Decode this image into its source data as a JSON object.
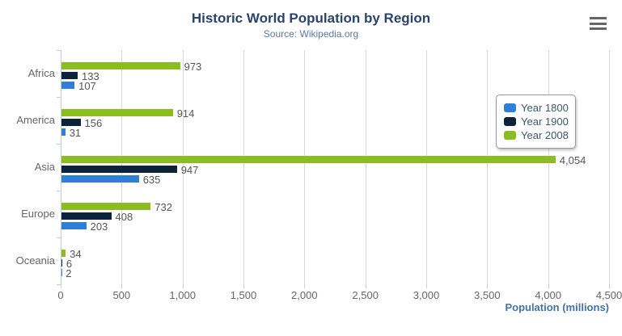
{
  "header": {
    "title": "Historic World Population by Region",
    "subtitle": "Source: Wikipedia.org"
  },
  "menu": {
    "icon": "hamburger-menu-icon"
  },
  "chart_data": {
    "type": "bar",
    "orientation": "horizontal",
    "title": "Historic World Population by Region",
    "subtitle": "Source: Wikipedia.org",
    "categories": [
      "Africa",
      "America",
      "Asia",
      "Europe",
      "Oceania"
    ],
    "series": [
      {
        "name": "Year 1800",
        "color": "#2f7ed8",
        "values": [
          107,
          31,
          635,
          203,
          2
        ]
      },
      {
        "name": "Year 1900",
        "color": "#0d233a",
        "values": [
          133,
          156,
          947,
          408,
          6
        ]
      },
      {
        "name": "Year 2008",
        "color": "#8bbc21",
        "values": [
          973,
          914,
          4054,
          732,
          34
        ]
      }
    ],
    "series_display_order_top_to_bottom": [
      "Year 2008",
      "Year 1900",
      "Year 1800"
    ],
    "data_labels_visible": true,
    "xlabel": "Population (millions)",
    "ylabel": "",
    "xlim": [
      0,
      4500
    ],
    "tick_interval": 500,
    "x_tick_labels": [
      "0",
      "500",
      "1,000",
      "1,500",
      "2,000",
      "2,500",
      "3,000",
      "3,500",
      "4,000",
      "4,500"
    ],
    "grid": "vertical-only",
    "legend_position": "right-inside",
    "legend_entries": [
      "Year 1800",
      "Year 1900",
      "Year 2008"
    ]
  },
  "colors": {
    "title": "#29436b",
    "subtitle": "#5d7a9e",
    "axis_title": "#4572a7",
    "axis_line": "#c0d0e0",
    "gridline": "#d8d8d8",
    "tick_label": "#666666",
    "data_label": "#555555",
    "legend_text": "#3e576f"
  }
}
